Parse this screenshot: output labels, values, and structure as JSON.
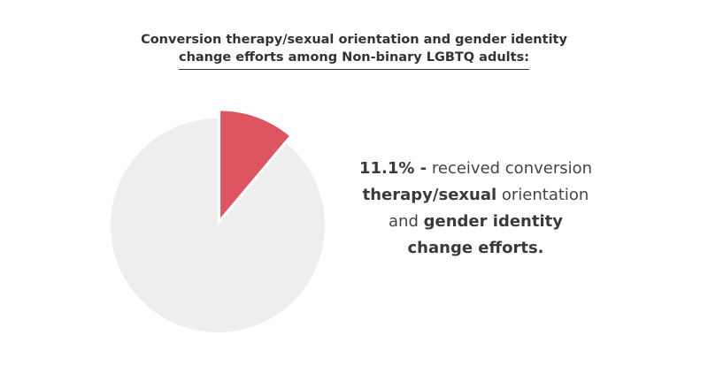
{
  "title": {
    "line1": "Conversion therapy/sexual orientation and gender identity",
    "line2": "change efforts among Non-binary LGBTQ adults:"
  },
  "callout": {
    "pct": "11.1% -",
    "line1_rest": " received conversion",
    "line2_bold": "therapy/sexual",
    "line2_rest": " orientation",
    "line3_pre": "and ",
    "line3_bold": "gender identity",
    "line4_bold": "change efforts."
  },
  "colors": {
    "highlight": "#dd5560",
    "rest": "#eeeeee"
  },
  "chart_data": {
    "type": "pie",
    "title": "Conversion therapy/sexual orientation and gender identity change efforts among Non-binary LGBTQ adults:",
    "slices": [
      {
        "label": "received conversion therapy/sexual orientation and gender identity change efforts",
        "value": 11.1,
        "color": "#dd5560",
        "exploded": true
      },
      {
        "label": "",
        "value": 88.9,
        "color": "#eeeeee",
        "exploded": false
      }
    ]
  }
}
